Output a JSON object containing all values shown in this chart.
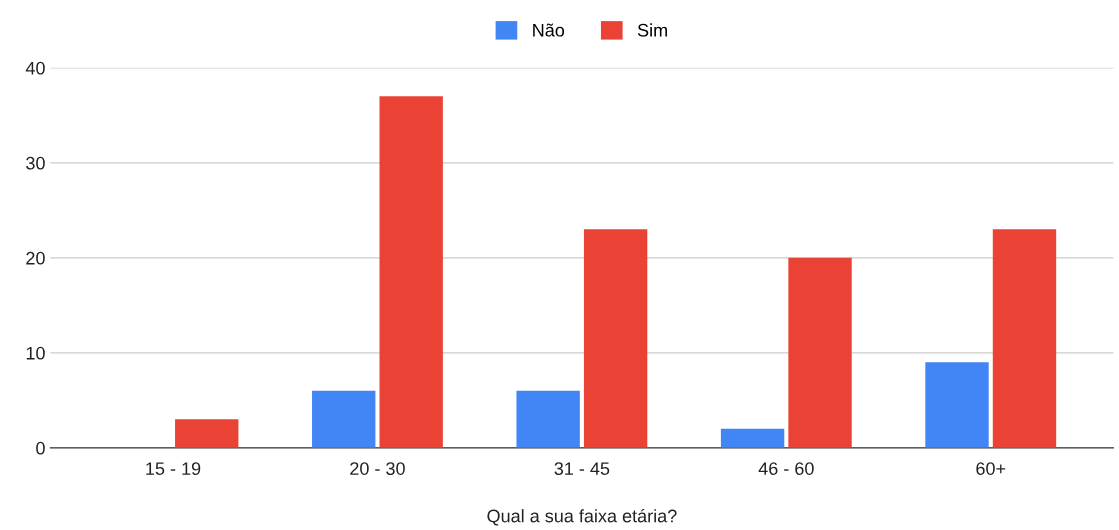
{
  "chart_data": {
    "type": "bar",
    "xlabel": "Qual a sua faixa etária?",
    "categories": [
      "15 - 19",
      "20 - 30",
      "31 - 45",
      "46 - 60",
      "60+"
    ],
    "series": [
      {
        "name": "Não",
        "color": "#4285f4",
        "values": [
          0,
          6,
          6,
          2,
          9
        ]
      },
      {
        "name": "Sim",
        "color": "#ea4335",
        "values": [
          3,
          37,
          23,
          20,
          23
        ]
      }
    ],
    "ylim": [
      0,
      40
    ],
    "yticks": [
      0,
      10,
      20,
      30,
      40
    ],
    "grid": "y",
    "legend": "top"
  }
}
